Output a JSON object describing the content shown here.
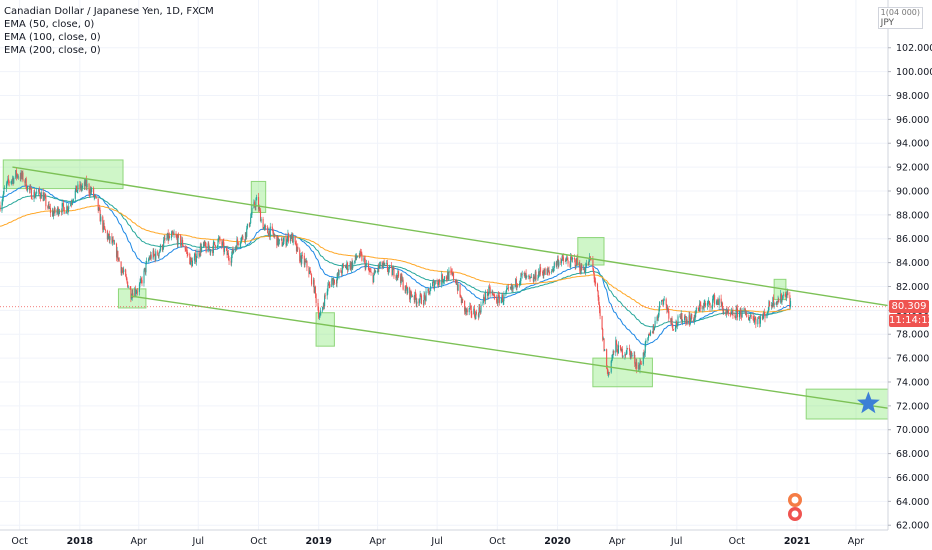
{
  "legend": {
    "title": "Canadian Dollar / Japanese Yen, 1D, FXCM",
    "indicators": [
      "EMA (50, close, 0)",
      "EMA (100, close, 0)",
      "EMA (200, close, 0)"
    ]
  },
  "axis_unit": {
    "multiplier": "1(04 000)",
    "currency": "JPY"
  },
  "current_price": {
    "value": "80.309",
    "countdown": "11:14:12",
    "color": "#ef5350"
  },
  "chart_data": {
    "type": "candlestick",
    "x_range": [
      "2017-09-01",
      "2021-05-20"
    ],
    "ylim": [
      61.6,
      106.0
    ],
    "y_ticks": [
      "62.000",
      "64.000",
      "66.000",
      "68.000",
      "70.000",
      "72.000",
      "74.000",
      "76.000",
      "78.000",
      "80.000",
      "82.000",
      "84.000",
      "86.000",
      "88.000",
      "90.000",
      "92.000",
      "94.000",
      "96.000",
      "98.000",
      "100.000",
      "102.000"
    ],
    "x_ticks": [
      {
        "label": "Oct",
        "date": "2017-10-01"
      },
      {
        "label": "2018",
        "date": "2018-01-01"
      },
      {
        "label": "Apr",
        "date": "2018-04-01"
      },
      {
        "label": "Jul",
        "date": "2018-07-01"
      },
      {
        "label": "Oct",
        "date": "2018-10-01"
      },
      {
        "label": "2019",
        "date": "2019-01-01"
      },
      {
        "label": "Apr",
        "date": "2019-04-01"
      },
      {
        "label": "Jul",
        "date": "2019-07-01"
      },
      {
        "label": "Oct",
        "date": "2019-10-01"
      },
      {
        "label": "2020",
        "date": "2020-01-01"
      },
      {
        "label": "Apr",
        "date": "2020-04-01"
      },
      {
        "label": "Jul",
        "date": "2020-07-01"
      },
      {
        "label": "Oct",
        "date": "2020-10-01"
      },
      {
        "label": "2021",
        "date": "2021-01-01"
      },
      {
        "label": "Apr",
        "date": "2021-04-01"
      }
    ],
    "price_path": [
      [
        "2017-09-01",
        88.8
      ],
      [
        "2017-09-15",
        90.8
      ],
      [
        "2017-09-25",
        91.6
      ],
      [
        "2017-10-15",
        90.2
      ],
      [
        "2017-11-05",
        89.4
      ],
      [
        "2017-11-25",
        88.0
      ],
      [
        "2017-12-15",
        89.0
      ],
      [
        "2018-01-10",
        90.8
      ],
      [
        "2018-01-25",
        89.0
      ],
      [
        "2018-02-15",
        85.8
      ],
      [
        "2018-03-01",
        84.5
      ],
      [
        "2018-03-20",
        81.2
      ],
      [
        "2018-04-05",
        82.5
      ],
      [
        "2018-04-20",
        84.5
      ],
      [
        "2018-05-10",
        85.5
      ],
      [
        "2018-05-25",
        86.5
      ],
      [
        "2018-06-20",
        84.2
      ],
      [
        "2018-07-10",
        85.2
      ],
      [
        "2018-08-01",
        85.6
      ],
      [
        "2018-08-20",
        84.6
      ],
      [
        "2018-09-10",
        86.5
      ],
      [
        "2018-09-28",
        89.0
      ],
      [
        "2018-10-10",
        87.0
      ],
      [
        "2018-10-28",
        85.8
      ],
      [
        "2018-11-20",
        86.0
      ],
      [
        "2018-12-10",
        84.0
      ],
      [
        "2018-12-25",
        82.0
      ],
      [
        "2019-01-03",
        79.5
      ],
      [
        "2019-01-20",
        82.6
      ],
      [
        "2019-02-10",
        83.4
      ],
      [
        "2019-03-01",
        84.6
      ],
      [
        "2019-03-25",
        83.0
      ],
      [
        "2019-04-15",
        83.8
      ],
      [
        "2019-05-10",
        82.3
      ],
      [
        "2019-05-30",
        80.7
      ],
      [
        "2019-06-20",
        81.6
      ],
      [
        "2019-07-10",
        83.0
      ],
      [
        "2019-07-30",
        82.5
      ],
      [
        "2019-08-15",
        79.6
      ],
      [
        "2019-08-30",
        79.9
      ],
      [
        "2019-09-20",
        81.5
      ],
      [
        "2019-10-10",
        80.8
      ],
      [
        "2019-10-30",
        82.5
      ],
      [
        "2019-11-20",
        82.7
      ],
      [
        "2019-12-10",
        83.1
      ],
      [
        "2019-12-30",
        83.8
      ],
      [
        "2020-01-15",
        84.4
      ],
      [
        "2020-02-05",
        83.5
      ],
      [
        "2020-02-20",
        84.2
      ],
      [
        "2020-03-01",
        81.5
      ],
      [
        "2020-03-10",
        78.0
      ],
      [
        "2020-03-18",
        74.5
      ],
      [
        "2020-03-30",
        77.0
      ],
      [
        "2020-04-15",
        76.5
      ],
      [
        "2020-05-05",
        75.5
      ],
      [
        "2020-05-20",
        77.5
      ],
      [
        "2020-06-08",
        81.0
      ],
      [
        "2020-06-25",
        79.0
      ],
      [
        "2020-07-15",
        79.2
      ],
      [
        "2020-08-05",
        80.0
      ],
      [
        "2020-08-25",
        81.0
      ],
      [
        "2020-09-10",
        80.1
      ],
      [
        "2020-09-28",
        79.4
      ],
      [
        "2020-10-12",
        80.0
      ],
      [
        "2020-10-30",
        79.0
      ],
      [
        "2020-11-15",
        80.0
      ],
      [
        "2020-11-30",
        80.8
      ],
      [
        "2020-12-14",
        81.6
      ],
      [
        "2020-12-22",
        80.3
      ]
    ],
    "series": [
      {
        "name": "EMA (50, close, 0)",
        "color": "#1e88e5",
        "period": 50
      },
      {
        "name": "EMA (100, close, 0)",
        "color": "#26a69a",
        "period": 100
      },
      {
        "name": "EMA (200, close, 0)",
        "color": "#ffa726",
        "period": 200
      }
    ],
    "candle_colors": {
      "up": "#26a69a",
      "down": "#ef5350"
    },
    "trendlines": [
      {
        "color": "#7cc156",
        "from": [
          "2017-09-20",
          92.0
        ],
        "to": [
          "2021-05-20",
          80.4
        ]
      },
      {
        "color": "#7cc156",
        "from": [
          "2018-03-20",
          81.2
        ],
        "to": [
          "2021-05-20",
          71.8
        ]
      }
    ],
    "highlight_boxes": [
      {
        "x": [
          "2017-09-06",
          "2018-03-08"
        ],
        "y": [
          90.2,
          92.6
        ]
      },
      {
        "x": [
          "2018-03-01",
          "2018-04-12"
        ],
        "y": [
          80.2,
          81.8
        ]
      },
      {
        "x": [
          "2018-09-20",
          "2018-10-12"
        ],
        "y": [
          88.2,
          90.8
        ]
      },
      {
        "x": [
          "2018-12-28",
          "2019-01-25"
        ],
        "y": [
          77.0,
          79.8
        ]
      },
      {
        "x": [
          "2020-02-01",
          "2020-03-12"
        ],
        "y": [
          83.8,
          86.1
        ]
      },
      {
        "x": [
          "2020-02-24",
          "2020-05-25"
        ],
        "y": [
          73.6,
          76.0
        ]
      },
      {
        "x": [
          "2020-11-27",
          "2020-12-15"
        ],
        "y": [
          80.9,
          82.6
        ]
      },
      {
        "x": [
          "2021-01-15",
          "2021-05-20"
        ],
        "y": [
          70.9,
          73.4
        ]
      }
    ],
    "target_marker": {
      "date": "2021-04-20",
      "price": 72.2,
      "color": "#3d7fd6",
      "shape": "star"
    },
    "current_price_line": 80.3,
    "grid": true
  }
}
